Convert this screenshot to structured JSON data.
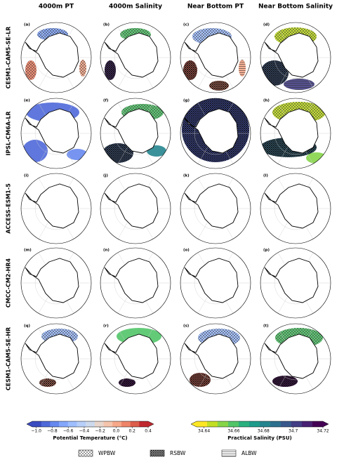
{
  "columns": [
    "4000m PT",
    "4000m Salinity",
    "Near Bottom PT",
    "Near Bottom Salinity"
  ],
  "rows": [
    {
      "model": "CESM1-CAM5-SE-LR",
      "panels": [
        "(a)",
        "(b)",
        "(c)",
        "(d)"
      ]
    },
    {
      "model": "IPSL-CM6A-LR",
      "panels": [
        "(e)",
        "(f)",
        "(g)",
        "(h)"
      ]
    },
    {
      "model": "ACCESS-ESM1-5",
      "panels": [
        "(i)",
        "(j)",
        "(k)",
        "(l)"
      ]
    },
    {
      "model": "CMCC-CM2-HR4",
      "panels": [
        "(m)",
        "(n)",
        "(o)",
        "(p)"
      ]
    },
    {
      "model": "CESM1-CAM5-SE-HR",
      "panels": [
        "(q)",
        "(r)",
        "(s)",
        "(t)"
      ]
    }
  ],
  "colorbars": [
    {
      "label": "Potential Temperature (°C)",
      "lim": [
        -1.05,
        0.4
      ],
      "ticks": [
        {
          "value": -1.0,
          "label": "−1.0"
        },
        {
          "value": -0.8,
          "label": "−0.8"
        },
        {
          "value": -0.6,
          "label": "−0.6"
        },
        {
          "value": -0.4,
          "label": "−0.4"
        },
        {
          "value": -0.2,
          "label": "−0.2"
        },
        {
          "value": 0.0,
          "label": "0.0"
        },
        {
          "value": 0.2,
          "label": "0.2"
        },
        {
          "value": 0.4,
          "label": "0.4"
        }
      ],
      "colors": [
        "#3b4cc0",
        "#4f69d9",
        "#6788ee",
        "#84a7fc",
        "#9ebeff",
        "#b7cff9",
        "#cdd9ec",
        "#e8d6cc",
        "#f5c4ac",
        "#f6a889",
        "#ee8468",
        "#dc5d4a",
        "#c0282f"
      ]
    },
    {
      "label": "Practical Salinity (PSU)",
      "lim": [
        34.635,
        34.72
      ],
      "ticks": [
        34.64,
        34.66,
        34.68,
        34.7,
        34.72
      ],
      "colors": [
        "#fde725",
        "#c2df23",
        "#86d549",
        "#52c569",
        "#2ab07f",
        "#1e9b8a",
        "#25858e",
        "#2d708e",
        "#38588c",
        "#433e85",
        "#482173",
        "#440154"
      ]
    }
  ],
  "legend": [
    "WPBW",
    "RSBW",
    "ALBW"
  ]
}
